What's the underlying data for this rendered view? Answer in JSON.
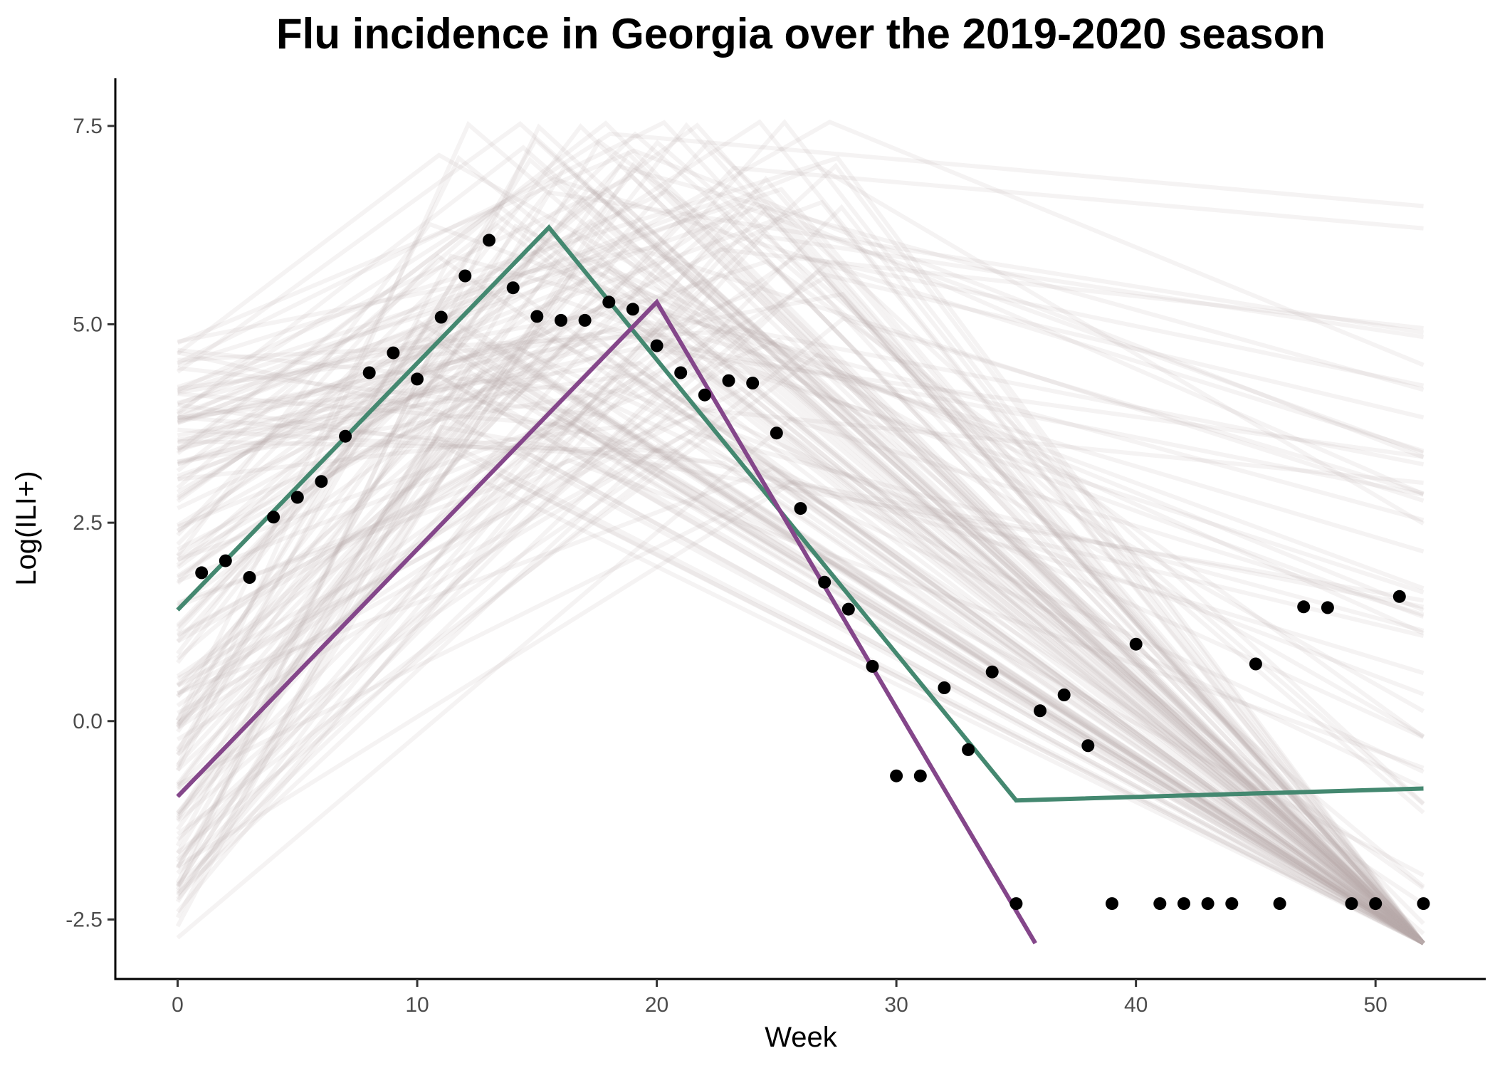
{
  "chart_data": {
    "type": "line",
    "title": "Flu incidence in Georgia over the 2019-2020 season",
    "xlabel": "Week",
    "ylabel": "Log(ILI+)",
    "xlim": [
      -2.6,
      54.6
    ],
    "ylim": [
      -3.25,
      8.1
    ],
    "x_ticks": [
      0,
      10,
      20,
      30,
      40,
      50
    ],
    "x_tick_labels": [
      "0",
      "10",
      "20",
      "30",
      "40",
      "50"
    ],
    "y_ticks": [
      -2.5,
      0,
      2.5,
      5,
      7.5
    ],
    "y_tick_labels": [
      "-2.5",
      "0.0",
      "2.5",
      "5.0",
      "7.5"
    ],
    "grid": false,
    "legend": "none",
    "series": [
      {
        "kind": "scatter",
        "color": "#000000",
        "x": [
          1,
          2,
          3,
          4,
          5,
          6,
          7,
          8,
          9,
          10,
          11,
          12,
          13,
          14,
          15,
          16,
          17,
          18,
          19,
          20,
          21,
          22,
          23,
          24,
          25,
          26,
          27,
          28,
          29,
          30,
          31,
          32,
          33,
          34,
          35,
          36,
          37,
          38,
          39,
          40,
          41,
          42,
          43,
          44,
          45,
          46,
          47,
          48,
          49,
          50,
          51,
          52
        ],
        "y": [
          1.87,
          2.02,
          1.81,
          2.57,
          2.82,
          3.02,
          3.59,
          4.39,
          4.64,
          4.31,
          5.09,
          5.61,
          6.06,
          5.46,
          5.1,
          5.05,
          5.05,
          5.28,
          5.19,
          4.73,
          4.39,
          4.11,
          4.29,
          4.26,
          3.63,
          2.68,
          1.75,
          1.41,
          0.69,
          -0.69,
          -0.69,
          0.42,
          -0.36,
          0.62,
          -2.3,
          0.13,
          0.33,
          -0.31,
          -2.3,
          0.97,
          -2.3,
          -2.3,
          -2.3,
          -2.3,
          0.72,
          -2.3,
          1.44,
          1.43,
          -2.3,
          -2.3,
          1.57,
          -2.3
        ]
      },
      {
        "kind": "line",
        "color": "#448870",
        "x": [
          0,
          15.5,
          35,
          52
        ],
        "y": [
          1.4,
          6.22,
          -1.0,
          -0.85
        ]
      },
      {
        "kind": "line",
        "color": "#84468a",
        "x": [
          0,
          20,
          35.8
        ],
        "y": [
          -0.95,
          5.28,
          -2.8
        ]
      }
    ],
    "background_lines": {
      "count": 150,
      "color": "#b9adad",
      "opacity": 0.14,
      "clip_y": [
        -2.8,
        7.55
      ],
      "x_range": [
        0,
        52
      ],
      "peak_week_range": [
        10,
        28
      ],
      "start_value_range": [
        -2.8,
        4.8
      ],
      "peak_value_range": [
        3.0,
        7.6
      ]
    }
  }
}
